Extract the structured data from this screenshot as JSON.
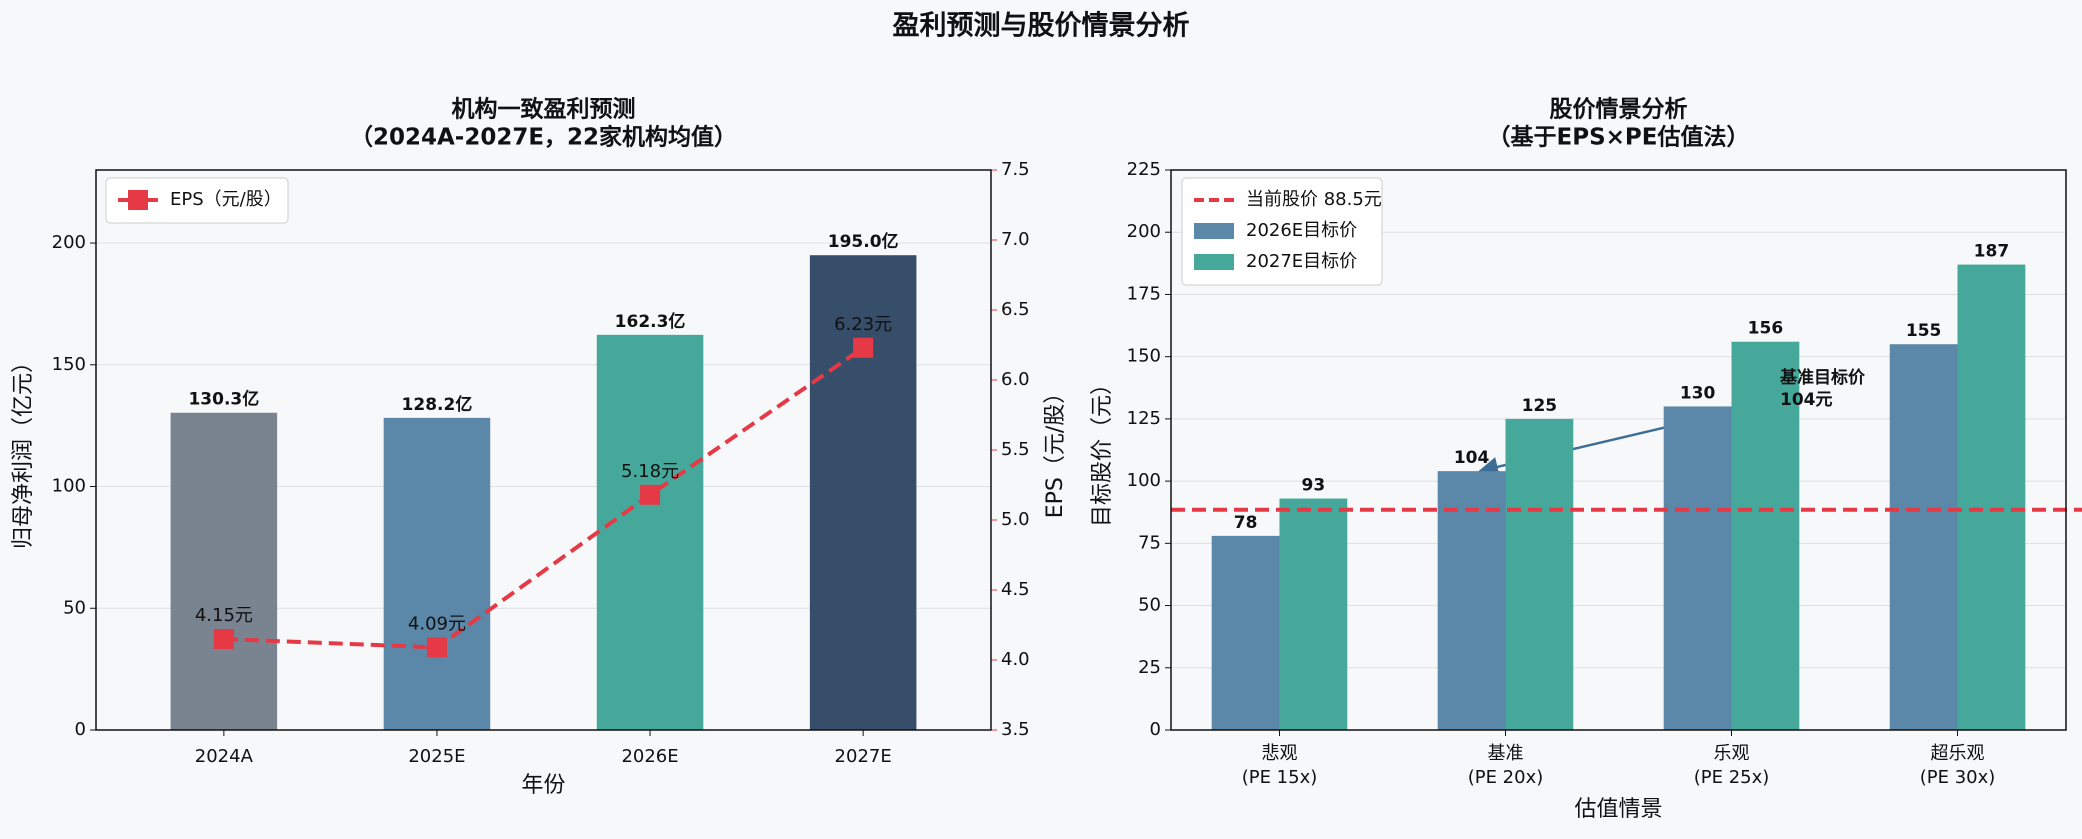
{
  "title": "盈利预测与股价情景分析",
  "chart_data": [
    {
      "type": "bar",
      "title": [
        "机构一致盈利预测",
        "（2024A-2027E，22家机构均值）"
      ],
      "xlabel": "年份",
      "ylabel": "归母净利润（亿元）",
      "y2label": "EPS（元/股）",
      "ylabel_color": "#3d6f96",
      "y2label_color": "#e63946",
      "categories": [
        "2024A",
        "2025E",
        "2026E",
        "2027E"
      ],
      "ylim": [
        0,
        230
      ],
      "yticks": [
        0,
        50,
        100,
        150,
        200
      ],
      "y2lim": [
        3.5,
        7.5
      ],
      "y2ticks": [
        3.5,
        {
          "value": 4,
          "label": "4.0"
        },
        4.5,
        {
          "value": 5,
          "label": "5.0"
        },
        5.5,
        {
          "value": 6,
          "label": "6.0"
        },
        6.5,
        {
          "value": 7,
          "label": "7.0"
        },
        7.5
      ],
      "grid": true,
      "legend": "upper left",
      "series": [
        {
          "values": [
            130.3,
            128.2,
            162.3,
            195.0
          ],
          "value_labels": [
            "130.3亿",
            "128.2亿",
            "162.3亿",
            "195.0亿"
          ],
          "colors": [
            "#7a8490",
            "#5b87a8",
            "#45a89a",
            "#374e6b"
          ],
          "label_colors": [
            "#6b7480",
            "#3d6f96",
            "#2f9a8a",
            "#1f3352"
          ]
        },
        {
          "name": "EPS（元/股）",
          "type": "line",
          "axis": "y2",
          "color": "#e63946",
          "values": [
            4.15,
            4.09,
            5.18,
            6.23
          ],
          "value_labels": [
            "4.15元",
            "4.09元",
            "5.18元",
            "6.23元"
          ]
        }
      ]
    },
    {
      "type": "bar",
      "title": [
        "股价情景分析",
        "（基于EPS×PE估值法）"
      ],
      "xlabel": "估值情景",
      "ylabel": "目标股价（元）",
      "categories": [
        [
          "悲观",
          "(PE 15x)"
        ],
        [
          "基准",
          "(PE 20x)"
        ],
        [
          "乐观",
          "(PE 25x)"
        ],
        [
          "超乐观",
          "(PE 30x)"
        ]
      ],
      "ylim": [
        0,
        225
      ],
      "yticks": [
        0,
        25,
        50,
        75,
        100,
        125,
        150,
        175,
        200,
        225
      ],
      "grid": true,
      "legend": "upper left",
      "reference": {
        "value": 88.5,
        "label": "当前股价 88.5元",
        "color": "#e63946"
      },
      "annotation": [
        "基准目标价",
        "104元"
      ],
      "series": [
        {
          "name": "2026E目标价",
          "color": "#5b87a8",
          "label_color": "#3d6f96",
          "values": [
            78,
            104,
            130,
            155
          ]
        },
        {
          "name": "2027E目标价",
          "color": "#45a89a",
          "label_color": "#2f9a8a",
          "values": [
            93,
            125,
            156,
            187
          ]
        }
      ]
    }
  ]
}
